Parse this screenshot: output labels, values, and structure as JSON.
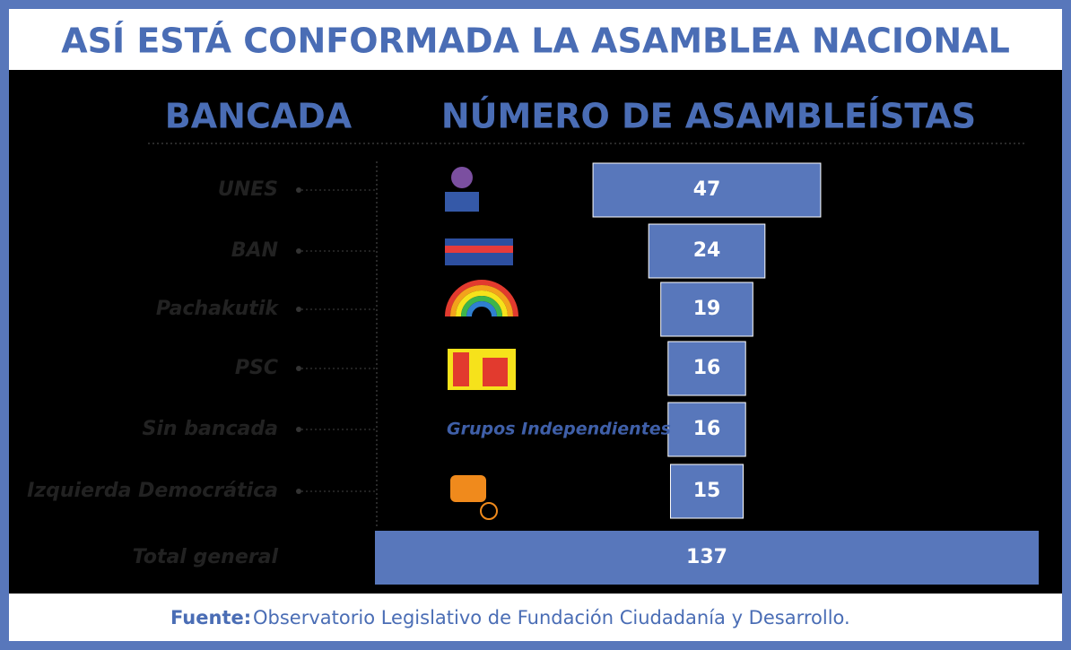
{
  "chart_data": {
    "type": "bar",
    "title": "ASÍ ESTÁ CONFORMADA LA ASAMBLEA NACIONAL",
    "category_header": "BANCADA",
    "value_header": "NÚMERO DE ASAMBLEÍSTAS",
    "categories": [
      "UNES",
      "BAN",
      "Pachakutik",
      "PSC",
      "Sin bancada",
      "Izquierda Democrática"
    ],
    "values": [
      47,
      24,
      19,
      16,
      16,
      15
    ],
    "color": "#5877bb",
    "logo_text": "Grupos Independientes",
    "total": {
      "label": "Total general",
      "value": 137
    },
    "source_label": "Fuente:",
    "source_text": "Observatorio Legislativo de Fundación Ciudadanía y Desarrollo."
  }
}
